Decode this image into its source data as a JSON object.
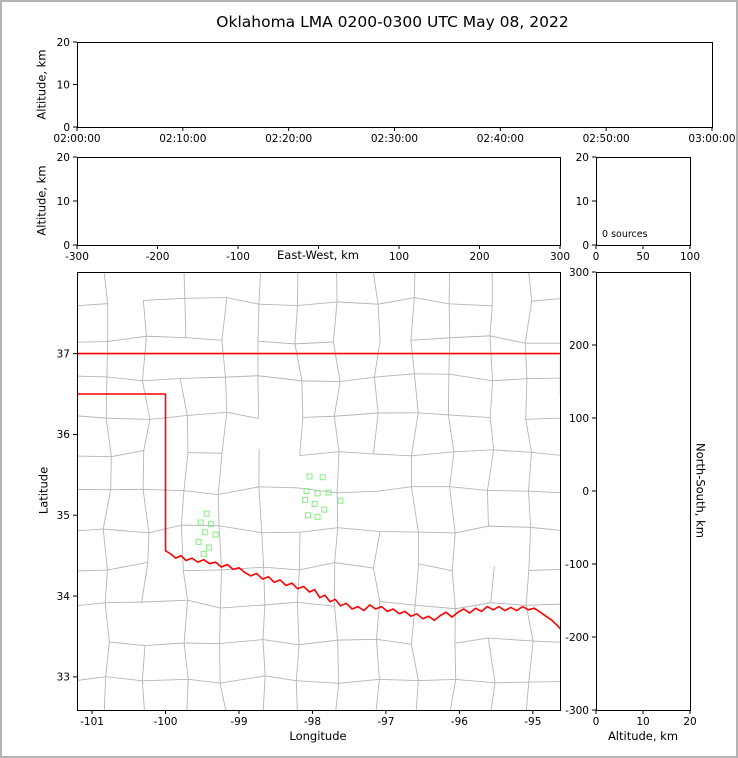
{
  "chart_data": {
    "type": "scatter",
    "title": "Oklahoma LMA 0200-0300 UTC May 08, 2022",
    "colors": {
      "state_border": "#ff0000",
      "county_lines": "#b5b5b5",
      "sources": "#90ee90",
      "axes": "#000000"
    },
    "panels": {
      "time_height": {
        "ylabel": "Altitude, km",
        "xtick_labels": [
          "02:00:00",
          "02:10:00",
          "02:20:00",
          "02:30:00",
          "02:40:00",
          "02:50:00",
          "03:00:00"
        ],
        "ylim": [
          0,
          20
        ],
        "yticks": [
          0,
          10,
          20
        ],
        "points": []
      },
      "ew_height": {
        "xlabel": "East-West, km",
        "ylabel": "Altitude, km",
        "xlim": [
          -300,
          300
        ],
        "xticks": [
          -300,
          -200,
          -100,
          0,
          100,
          200,
          300
        ],
        "ylim": [
          0,
          20
        ],
        "yticks": [
          0,
          10,
          20
        ],
        "points": []
      },
      "histogram": {
        "annotation": "0 sources",
        "xlim": [
          0,
          100
        ],
        "xticks": [
          0,
          50,
          100
        ],
        "ylim": [
          0,
          20
        ],
        "yticks": [
          0,
          10,
          20
        ]
      },
      "map": {
        "xlabel": "Longitude",
        "ylabel": "Latitude",
        "xlim": [
          -101.205,
          -94.63
        ],
        "xticks": [
          -101,
          -100,
          -99,
          -98,
          -97,
          -96,
          -95
        ],
        "ylim": [
          32.59,
          38.01
        ],
        "yticks": [
          33,
          34,
          35,
          36,
          37
        ],
        "sources_lonlat": [
          [
            -98.04,
            35.48
          ],
          [
            -97.86,
            35.47
          ],
          [
            -98.08,
            35.3
          ],
          [
            -97.93,
            35.27
          ],
          [
            -97.78,
            35.28
          ],
          [
            -98.1,
            35.19
          ],
          [
            -97.97,
            35.14
          ],
          [
            -97.84,
            35.07
          ],
          [
            -98.06,
            35.0
          ],
          [
            -97.93,
            34.98
          ],
          [
            -97.62,
            35.18
          ],
          [
            -99.44,
            35.02
          ],
          [
            -99.52,
            34.91
          ],
          [
            -99.38,
            34.89
          ],
          [
            -99.46,
            34.79
          ],
          [
            -99.32,
            34.76
          ],
          [
            -99.55,
            34.67
          ],
          [
            -99.41,
            34.6
          ],
          [
            -99.48,
            34.52
          ]
        ],
        "state_border_lonlat": [
          [
            [
              -101.21,
              37.0
            ],
            [
              -94.6,
              37.0
            ]
          ],
          [
            [
              -94.62,
              37.0
            ],
            [
              -94.62,
              36.5
            ]
          ],
          [
            [
              -101.21,
              36.5
            ],
            [
              -100.0,
              36.5
            ],
            [
              -100.0,
              34.56
            ],
            [
              -99.93,
              34.52
            ],
            [
              -99.86,
              34.47
            ],
            [
              -99.79,
              34.5
            ],
            [
              -99.72,
              34.44
            ],
            [
              -99.64,
              34.47
            ],
            [
              -99.56,
              34.42
            ],
            [
              -99.48,
              34.45
            ],
            [
              -99.4,
              34.4
            ],
            [
              -99.32,
              34.42
            ],
            [
              -99.24,
              34.36
            ],
            [
              -99.16,
              34.39
            ],
            [
              -99.08,
              34.33
            ],
            [
              -99.0,
              34.35
            ],
            [
              -98.92,
              34.29
            ],
            [
              -98.84,
              34.25
            ],
            [
              -98.76,
              34.28
            ],
            [
              -98.68,
              34.21
            ],
            [
              -98.6,
              34.24
            ],
            [
              -98.52,
              34.17
            ],
            [
              -98.44,
              34.2
            ],
            [
              -98.36,
              34.13
            ],
            [
              -98.28,
              34.16
            ],
            [
              -98.2,
              34.09
            ],
            [
              -98.12,
              34.12
            ],
            [
              -98.04,
              34.05
            ],
            [
              -97.97,
              34.08
            ],
            [
              -97.9,
              33.98
            ],
            [
              -97.83,
              34.01
            ],
            [
              -97.76,
              33.93
            ],
            [
              -97.69,
              33.96
            ],
            [
              -97.62,
              33.88
            ],
            [
              -97.54,
              33.91
            ],
            [
              -97.46,
              33.84
            ],
            [
              -97.38,
              33.87
            ],
            [
              -97.3,
              33.82
            ],
            [
              -97.22,
              33.89
            ],
            [
              -97.14,
              33.84
            ],
            [
              -97.06,
              33.87
            ],
            [
              -96.98,
              33.81
            ],
            [
              -96.9,
              33.84
            ],
            [
              -96.82,
              33.78
            ],
            [
              -96.74,
              33.81
            ],
            [
              -96.66,
              33.75
            ],
            [
              -96.58,
              33.78
            ],
            [
              -96.5,
              33.72
            ],
            [
              -96.42,
              33.75
            ],
            [
              -96.34,
              33.7
            ],
            [
              -96.26,
              33.76
            ],
            [
              -96.18,
              33.8
            ],
            [
              -96.1,
              33.74
            ],
            [
              -96.02,
              33.8
            ],
            [
              -95.94,
              33.84
            ],
            [
              -95.86,
              33.79
            ],
            [
              -95.78,
              33.85
            ],
            [
              -95.7,
              33.81
            ],
            [
              -95.62,
              33.87
            ],
            [
              -95.54,
              33.83
            ],
            [
              -95.46,
              33.87
            ],
            [
              -95.38,
              33.82
            ],
            [
              -95.3,
              33.86
            ],
            [
              -95.22,
              33.82
            ],
            [
              -95.14,
              33.87
            ],
            [
              -95.06,
              33.83
            ],
            [
              -94.98,
              33.85
            ],
            [
              -94.9,
              33.8
            ],
            [
              -94.82,
              33.75
            ],
            [
              -94.74,
              33.7
            ],
            [
              -94.66,
              33.63
            ],
            [
              -94.6,
              33.57
            ]
          ]
        ]
      },
      "ns_height": {
        "xlabel": "Altitude, km",
        "ylabel": "North-South, km",
        "xlim": [
          0,
          20
        ],
        "xticks": [
          0,
          10,
          20
        ],
        "ylim": [
          -300,
          300
        ],
        "yticks": [
          -300,
          -200,
          -100,
          0,
          100,
          200,
          300
        ],
        "points": []
      }
    }
  }
}
